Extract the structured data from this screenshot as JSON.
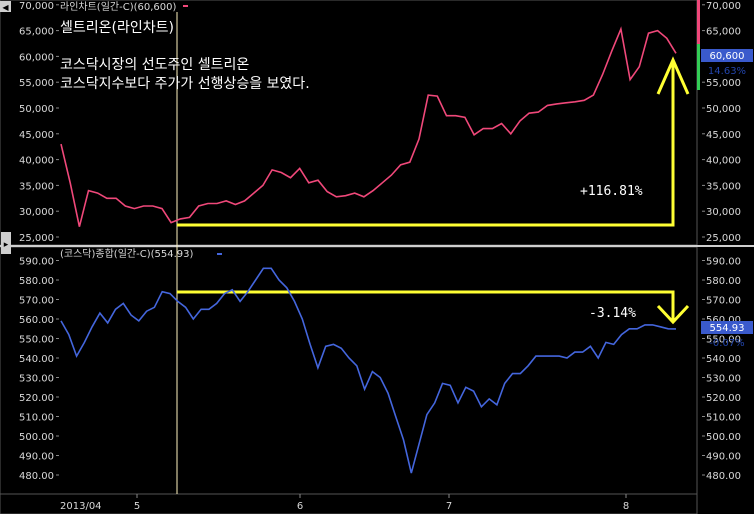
{
  "header": {
    "top_series_label": "라인차트(일간-C)(60,600)",
    "bottom_series_label": "(코스닥)종합(일간-C)(554.93)"
  },
  "annotations": {
    "title": "셀트리온(라인차트)",
    "note_line1": "코스닥시장의 선도주인 셀트리온",
    "note_line2": "코스닥지수보다 주가가 선행상승을 보였다.",
    "top_change": "+116.81%",
    "bottom_change": "-3.14%"
  },
  "badges": {
    "top_value": "60,600",
    "top_pct": "14.63%",
    "bottom_value": "554.93",
    "bottom_pct": "-0.07%"
  },
  "colors": {
    "top_line": "#f0487a",
    "bottom_line": "#4466dd",
    "arrow": "#ffff33",
    "cursor": "#fff3c0"
  },
  "chart_data": [
    {
      "type": "line",
      "series": [
        {
          "name": "라인차트(일간-C)",
          "values": [
            43000,
            35500,
            27000,
            34000,
            33500,
            32500,
            32500,
            31000,
            30500,
            31000,
            31000,
            30500,
            27800,
            28500,
            28800,
            31000,
            31500,
            31500,
            32000,
            31300,
            32000,
            33500,
            35000,
            38000,
            37500,
            36500,
            38300,
            35500,
            36000,
            33800,
            32800,
            33000,
            33500,
            32800,
            34000,
            35500,
            37000,
            39000,
            39500,
            44000,
            52500,
            52300,
            48500,
            48500,
            48200,
            44800,
            46000,
            46000,
            47000,
            45000,
            47500,
            49000,
            49200,
            50500,
            50800,
            51000,
            51200,
            51500,
            52500,
            56500,
            61000,
            65300,
            55500,
            58000,
            64500,
            65000,
            63500,
            60600
          ]
        }
      ],
      "ylim": [
        25000,
        70000
      ],
      "yticks": [
        25000,
        30000,
        35000,
        40000,
        45000,
        50000,
        55000,
        60000,
        65000,
        70000
      ],
      "x_labels": [
        "2013/04",
        "5",
        "6",
        "7",
        "8"
      ]
    },
    {
      "type": "line",
      "series": [
        {
          "name": "(코스닥)종합(일간-C)",
          "values": [
            559,
            552,
            541,
            548,
            556,
            563,
            558,
            565,
            568,
            562,
            559,
            564,
            566,
            574,
            573,
            569,
            566,
            560,
            565,
            565,
            568,
            573,
            575,
            569,
            574,
            580,
            586,
            586,
            580,
            576,
            569,
            560,
            547,
            535,
            546,
            547,
            545,
            540,
            536,
            524,
            533,
            530,
            522,
            510,
            498,
            481,
            496,
            511,
            517,
            527,
            526,
            517,
            525,
            523,
            515,
            519,
            516,
            527,
            532,
            532,
            536,
            541,
            541,
            541,
            541,
            540,
            543,
            543,
            546,
            540,
            548,
            547,
            552,
            555,
            555,
            557,
            557,
            556,
            555,
            554.93
          ]
        }
      ],
      "ylim": [
        475,
        593
      ],
      "yticks": [
        480,
        490,
        500,
        510,
        520,
        530,
        540,
        550,
        560,
        570,
        580,
        590
      ]
    }
  ]
}
